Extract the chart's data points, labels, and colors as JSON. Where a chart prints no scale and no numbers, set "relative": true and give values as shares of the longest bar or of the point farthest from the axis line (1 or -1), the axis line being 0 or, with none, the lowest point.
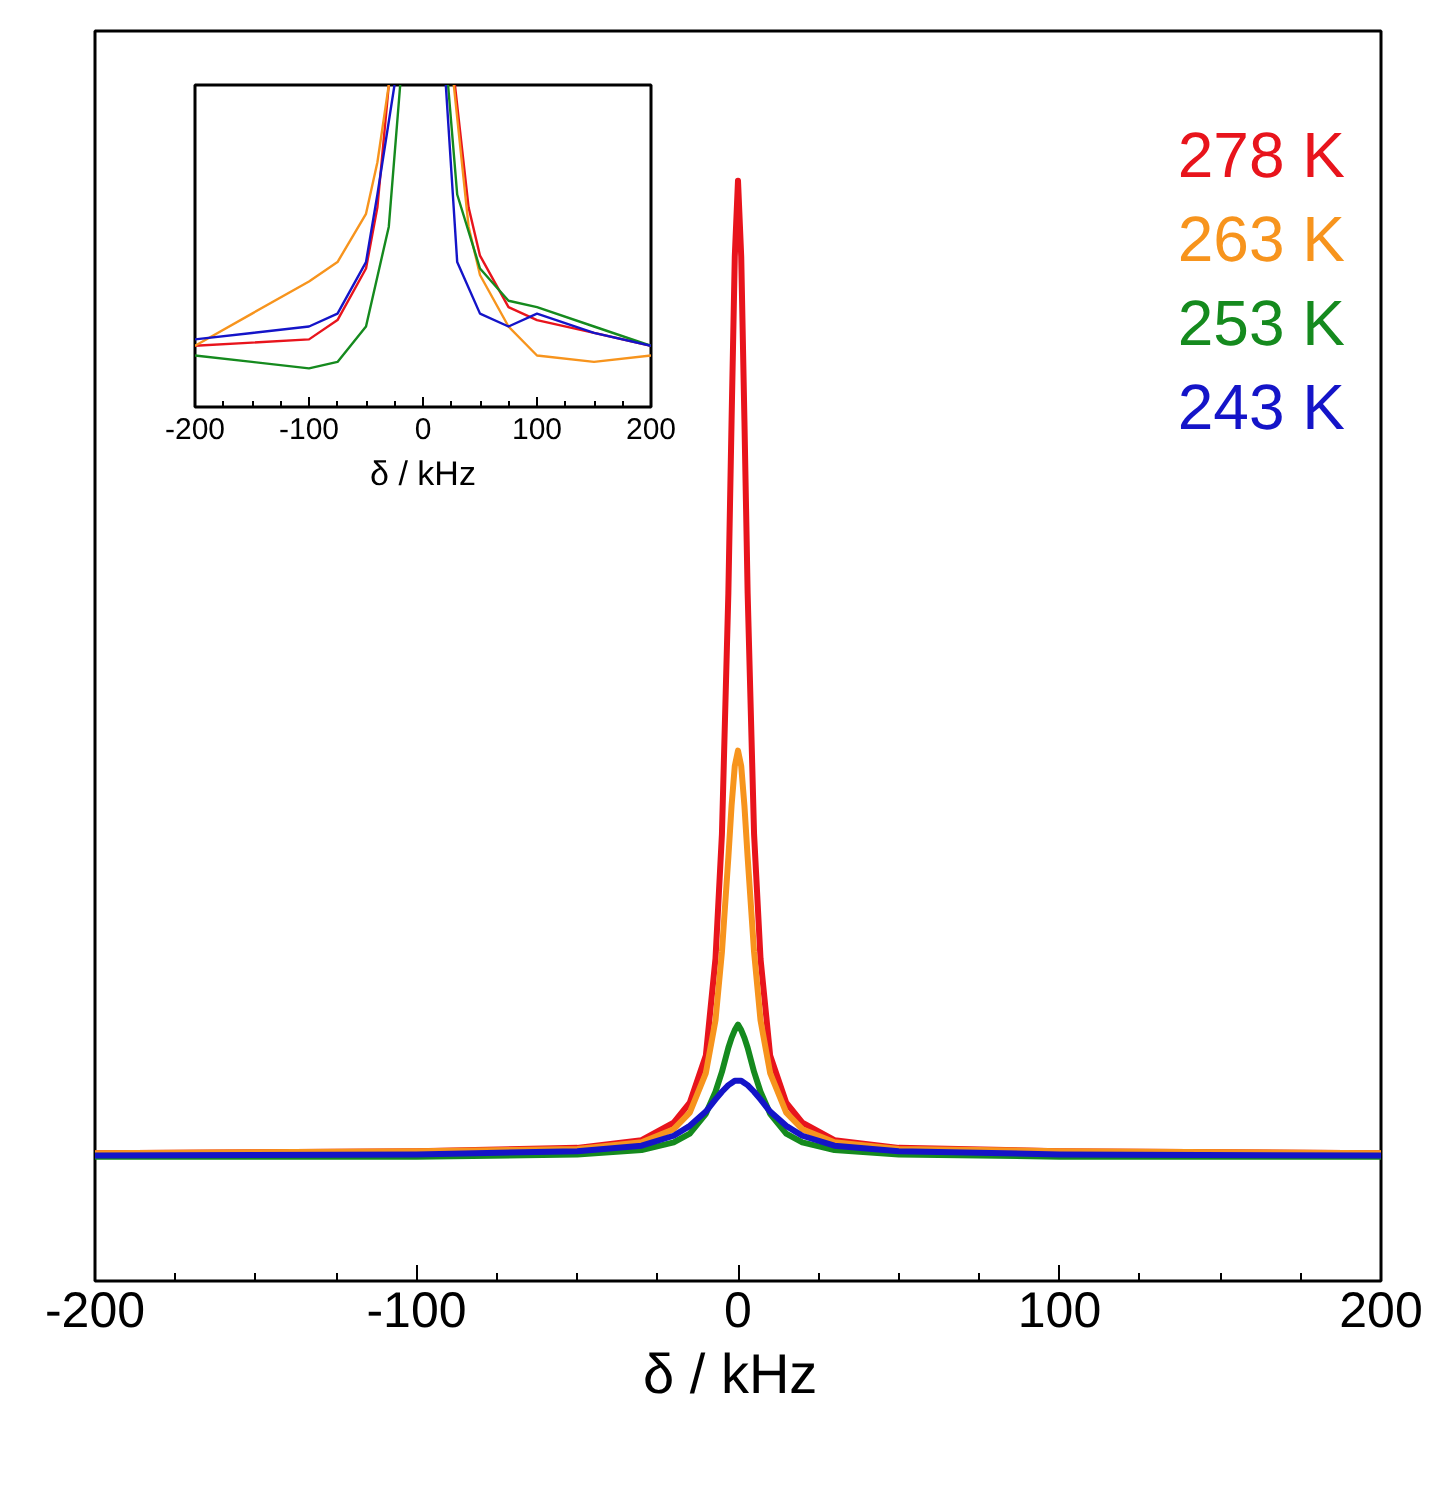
{
  "chart_data": [
    {
      "type": "line",
      "xlabel": "δ  / kHz",
      "relative": true,
      "xlim": [
        -200,
        200
      ],
      "xticks": [
        -200,
        -100,
        0,
        100,
        200
      ],
      "legend": "top right",
      "grid": false,
      "tick_labels": "x",
      "x": [
        -200,
        -100,
        -50,
        -30,
        -20,
        -15,
        -10,
        -7,
        -5,
        -3,
        -2,
        -1,
        0,
        1,
        2,
        3,
        5,
        7,
        10,
        15,
        20,
        30,
        50,
        100,
        200
      ],
      "series": [
        {
          "name": "278 K",
          "color": "#e8141c",
          "values": [
            0.116,
            0.118,
            0.121,
            0.128,
            0.144,
            0.162,
            0.205,
            0.293,
            0.406,
            0.625,
            0.782,
            0.931,
            1.0,
            0.931,
            0.782,
            0.625,
            0.406,
            0.293,
            0.205,
            0.162,
            0.144,
            0.128,
            0.121,
            0.118,
            0.116
          ]
        },
        {
          "name": "263 K",
          "color": "#f7941d",
          "values": [
            0.116,
            0.118,
            0.12,
            0.126,
            0.138,
            0.153,
            0.189,
            0.237,
            0.299,
            0.385,
            0.432,
            0.468,
            0.482,
            0.468,
            0.432,
            0.385,
            0.299,
            0.237,
            0.189,
            0.153,
            0.138,
            0.126,
            0.12,
            0.118,
            0.116
          ]
        },
        {
          "name": "253 K",
          "color": "#158a1e",
          "values": [
            0.113,
            0.113,
            0.115,
            0.119,
            0.126,
            0.134,
            0.152,
            0.172,
            0.19,
            0.212,
            0.221,
            0.228,
            0.233,
            0.228,
            0.221,
            0.212,
            0.19,
            0.172,
            0.152,
            0.134,
            0.126,
            0.119,
            0.115,
            0.113,
            0.113
          ]
        },
        {
          "name": "243 K",
          "color": "#1414c8",
          "values": [
            0.114,
            0.115,
            0.118,
            0.123,
            0.132,
            0.141,
            0.154,
            0.165,
            0.172,
            0.178,
            0.18,
            0.182,
            0.182,
            0.182,
            0.18,
            0.178,
            0.172,
            0.165,
            0.154,
            0.141,
            0.132,
            0.123,
            0.118,
            0.115,
            0.114
          ]
        }
      ]
    },
    {
      "type": "line",
      "xlabel": "δ / kHz",
      "relative": true,
      "xlim": [
        -200,
        200
      ],
      "xticks": [
        -200,
        -100,
        0,
        100,
        200
      ],
      "grid": false,
      "tick_labels": "x",
      "series": [
        {
          "color": "#e8141c",
          "x": [
            -200,
            -150,
            -100,
            -75,
            -50,
            -40,
            -30,
            0,
            28,
            40,
            50,
            75,
            100,
            150,
            200
          ],
          "values": [
            0.19,
            0.2,
            0.21,
            0.27,
            0.43,
            0.62,
            1.0,
            null,
            1.0,
            0.62,
            0.47,
            0.31,
            0.27,
            0.23,
            0.19
          ]
        },
        {
          "color": "#f7941d",
          "x": [
            -200,
            -150,
            -100,
            -75,
            -50,
            -40,
            -30,
            0,
            27,
            40,
            50,
            75,
            100,
            150,
            200
          ],
          "values": [
            0.19,
            0.29,
            0.39,
            0.45,
            0.6,
            0.76,
            1.0,
            null,
            1.0,
            0.56,
            0.41,
            0.25,
            0.16,
            0.14,
            0.16
          ]
        },
        {
          "color": "#158a1e",
          "x": [
            -200,
            -150,
            -100,
            -75,
            -50,
            -30,
            -20,
            0,
            22,
            30,
            50,
            75,
            100,
            150,
            200
          ],
          "values": [
            0.16,
            0.14,
            0.12,
            0.14,
            0.25,
            0.56,
            1.0,
            null,
            1.0,
            0.66,
            0.43,
            0.33,
            0.31,
            0.25,
            0.19
          ]
        },
        {
          "color": "#1414c8",
          "x": [
            -200,
            -150,
            -100,
            -75,
            -50,
            -40,
            -25,
            0,
            20,
            30,
            50,
            75,
            100,
            150,
            200
          ],
          "values": [
            0.21,
            0.23,
            0.25,
            0.29,
            0.45,
            0.66,
            1.0,
            null,
            1.0,
            0.45,
            0.29,
            0.25,
            0.29,
            0.23,
            0.19
          ]
        }
      ]
    }
  ]
}
